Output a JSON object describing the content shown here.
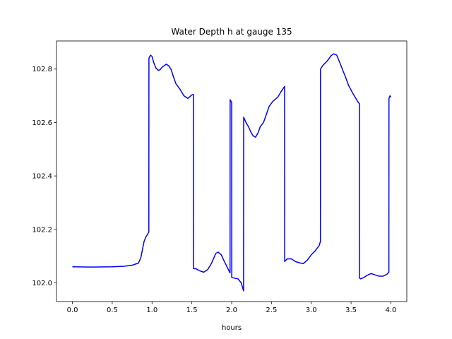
{
  "chart_data": {
    "type": "line",
    "title": "Water Depth h at gauge 135",
    "xlabel": "hours",
    "ylabel": "",
    "xlim": [
      -0.2,
      4.2
    ],
    "ylim": [
      101.93,
      102.905
    ],
    "x_ticks": [
      0.0,
      0.5,
      1.0,
      1.5,
      2.0,
      2.5,
      3.0,
      3.5,
      4.0
    ],
    "x_tick_labels": [
      "0.0",
      "0.5",
      "1.0",
      "1.5",
      "2.0",
      "2.5",
      "3.0",
      "3.5",
      "4.0"
    ],
    "y_ticks": [
      102.0,
      102.2,
      102.4,
      102.6,
      102.8
    ],
    "y_tick_labels": [
      "102.0",
      "102.2",
      "102.4",
      "102.6",
      "102.8"
    ],
    "grid": false,
    "colors": {
      "series": "#0000ff",
      "axes": "#000000",
      "background": "#ffffff"
    },
    "series": [
      {
        "x": [
          0.0,
          0.25,
          0.5,
          0.65,
          0.75,
          0.8,
          0.83,
          0.86,
          0.9,
          0.92,
          0.95,
          0.96,
          0.961,
          0.98,
          1.0,
          1.02,
          1.05,
          1.08,
          1.1,
          1.13,
          1.18,
          1.21,
          1.24,
          1.27,
          1.3,
          1.35,
          1.4,
          1.45,
          1.5,
          1.52,
          1.521,
          1.55,
          1.6,
          1.65,
          1.7,
          1.75,
          1.8,
          1.83,
          1.87,
          1.9,
          1.95,
          1.98,
          1.981,
          2.0,
          2.001,
          2.03,
          2.08,
          2.12,
          2.15,
          2.151,
          2.18,
          2.21,
          2.24,
          2.27,
          2.3,
          2.33,
          2.36,
          2.4,
          2.43,
          2.47,
          2.52,
          2.58,
          2.62,
          2.665,
          2.666,
          2.7,
          2.75,
          2.8,
          2.85,
          2.9,
          2.95,
          3.0,
          3.05,
          3.1,
          3.115,
          3.116,
          3.15,
          3.2,
          3.25,
          3.28,
          3.32,
          3.35,
          3.39,
          3.43,
          3.47,
          3.52,
          3.58,
          3.605,
          3.606,
          3.62,
          3.66,
          3.7,
          3.75,
          3.8,
          3.85,
          3.9,
          3.95,
          3.975,
          3.976,
          3.99,
          4.0
        ],
        "values": [
          102.06,
          102.059,
          102.06,
          102.062,
          102.066,
          102.071,
          102.074,
          102.095,
          102.155,
          102.17,
          102.185,
          102.19,
          102.84,
          102.852,
          102.847,
          102.825,
          102.803,
          102.795,
          102.797,
          102.808,
          102.818,
          102.812,
          102.798,
          102.77,
          102.745,
          102.725,
          102.7,
          102.69,
          102.703,
          102.705,
          102.053,
          102.053,
          102.045,
          102.04,
          102.05,
          102.075,
          102.11,
          102.115,
          102.105,
          102.085,
          102.055,
          102.037,
          102.685,
          102.675,
          102.02,
          102.018,
          102.015,
          102.0,
          101.97,
          102.62,
          102.6,
          102.585,
          102.565,
          102.55,
          102.545,
          102.56,
          102.585,
          102.6,
          102.625,
          102.66,
          102.68,
          102.695,
          102.715,
          102.735,
          102.08,
          102.09,
          102.09,
          102.08,
          102.075,
          102.072,
          102.085,
          102.105,
          102.12,
          102.14,
          102.155,
          102.8,
          102.815,
          102.83,
          102.85,
          102.857,
          102.852,
          102.83,
          102.8,
          102.77,
          102.738,
          102.71,
          102.68,
          102.67,
          102.018,
          102.015,
          102.02,
          102.028,
          102.035,
          102.03,
          102.025,
          102.025,
          102.032,
          102.04,
          102.69,
          102.7,
          102.695
        ]
      }
    ]
  }
}
